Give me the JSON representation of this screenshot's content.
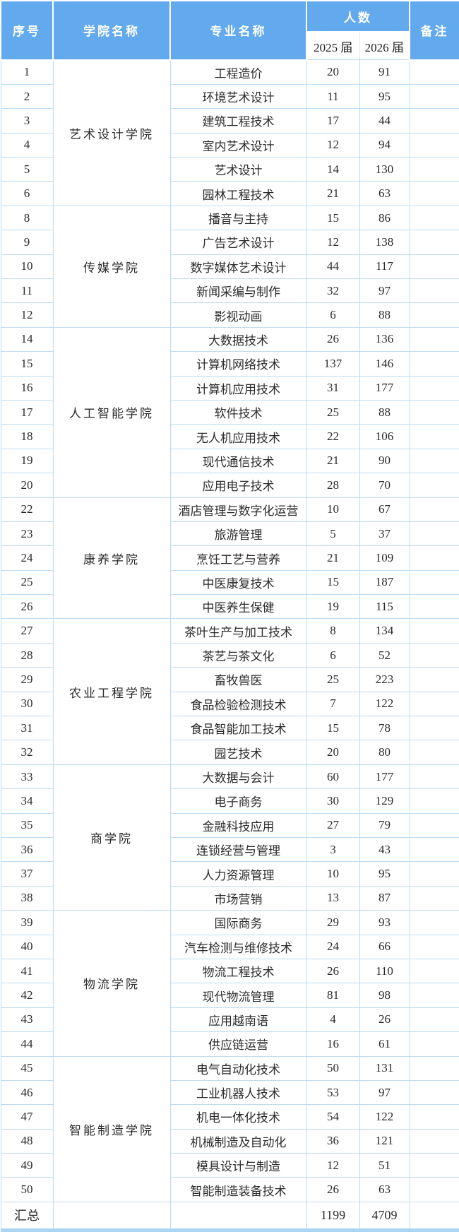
{
  "colors": {
    "header_bg": "#63a9ed",
    "header_text": "#ffffff",
    "grid_border": "#bcdcf4",
    "body_text": "#2b2b2b",
    "bottom_edge": "#a9d4f3"
  },
  "table": {
    "headers": {
      "serial": "序号",
      "college": "学院名称",
      "major": "专业名称",
      "count": "人数",
      "cohort_2025": "2025 届",
      "cohort_2026": "2026 届",
      "remark": "备注"
    },
    "groups": [
      {
        "college": "艺术设计学院",
        "rows": [
          {
            "no": "1",
            "major": "工程造价",
            "c2025": "20",
            "c2026": "91",
            "remark": ""
          },
          {
            "no": "2",
            "major": "环境艺术设计",
            "c2025": "11",
            "c2026": "95",
            "remark": ""
          },
          {
            "no": "3",
            "major": "建筑工程技术",
            "c2025": "17",
            "c2026": "44",
            "remark": ""
          },
          {
            "no": "4",
            "major": "室内艺术设计",
            "c2025": "12",
            "c2026": "94",
            "remark": ""
          },
          {
            "no": "5",
            "major": "艺术设计",
            "c2025": "14",
            "c2026": "130",
            "remark": ""
          },
          {
            "no": "6",
            "major": "园林工程技术",
            "c2025": "21",
            "c2026": "63",
            "remark": ""
          }
        ]
      },
      {
        "college": "传媒学院",
        "rows": [
          {
            "no": "8",
            "major": "播音与主持",
            "c2025": "15",
            "c2026": "86",
            "remark": ""
          },
          {
            "no": "9",
            "major": "广告艺术设计",
            "c2025": "12",
            "c2026": "138",
            "remark": ""
          },
          {
            "no": "10",
            "major": "数字媒体艺术设计",
            "c2025": "44",
            "c2026": "117",
            "remark": ""
          },
          {
            "no": "11",
            "major": "新闻采编与制作",
            "c2025": "32",
            "c2026": "97",
            "remark": ""
          },
          {
            "no": "12",
            "major": "影视动画",
            "c2025": "6",
            "c2026": "88",
            "remark": ""
          }
        ]
      },
      {
        "college": "人工智能学院",
        "rows": [
          {
            "no": "14",
            "major": "大数据技术",
            "c2025": "26",
            "c2026": "136",
            "remark": ""
          },
          {
            "no": "15",
            "major": "计算机网络技术",
            "c2025": "137",
            "c2026": "146",
            "remark": ""
          },
          {
            "no": "16",
            "major": "计算机应用技术",
            "c2025": "31",
            "c2026": "177",
            "remark": ""
          },
          {
            "no": "17",
            "major": "软件技术",
            "c2025": "25",
            "c2026": "88",
            "remark": ""
          },
          {
            "no": "18",
            "major": "无人机应用技术",
            "c2025": "22",
            "c2026": "106",
            "remark": ""
          },
          {
            "no": "19",
            "major": "现代通信技术",
            "c2025": "21",
            "c2026": "90",
            "remark": ""
          },
          {
            "no": "20",
            "major": "应用电子技术",
            "c2025": "28",
            "c2026": "70",
            "remark": ""
          }
        ]
      },
      {
        "college": "康养学院",
        "rows": [
          {
            "no": "22",
            "major": "酒店管理与数字化运营",
            "c2025": "10",
            "c2026": "67",
            "remark": ""
          },
          {
            "no": "23",
            "major": "旅游管理",
            "c2025": "5",
            "c2026": "37",
            "remark": ""
          },
          {
            "no": "24",
            "major": "烹饪工艺与营养",
            "c2025": "21",
            "c2026": "109",
            "remark": ""
          },
          {
            "no": "25",
            "major": "中医康复技术",
            "c2025": "15",
            "c2026": "187",
            "remark": ""
          },
          {
            "no": "26",
            "major": "中医养生保健",
            "c2025": "19",
            "c2026": "115",
            "remark": ""
          }
        ]
      },
      {
        "college": "农业工程学院",
        "rows": [
          {
            "no": "27",
            "major": "茶叶生产与加工技术",
            "c2025": "8",
            "c2026": "134",
            "remark": ""
          },
          {
            "no": "28",
            "major": "茶艺与茶文化",
            "c2025": "6",
            "c2026": "52",
            "remark": ""
          },
          {
            "no": "29",
            "major": "畜牧兽医",
            "c2025": "25",
            "c2026": "223",
            "remark": ""
          },
          {
            "no": "30",
            "major": "食品检验检测技术",
            "c2025": "7",
            "c2026": "122",
            "remark": ""
          },
          {
            "no": "31",
            "major": "食品智能加工技术",
            "c2025": "15",
            "c2026": "78",
            "remark": ""
          },
          {
            "no": "32",
            "major": "园艺技术",
            "c2025": "20",
            "c2026": "80",
            "remark": ""
          }
        ]
      },
      {
        "college": "商学院",
        "rows": [
          {
            "no": "33",
            "major": "大数据与会计",
            "c2025": "60",
            "c2026": "177",
            "remark": ""
          },
          {
            "no": "34",
            "major": "电子商务",
            "c2025": "30",
            "c2026": "129",
            "remark": ""
          },
          {
            "no": "35",
            "major": "金融科技应用",
            "c2025": "27",
            "c2026": "79",
            "remark": ""
          },
          {
            "no": "36",
            "major": "连锁经营与管理",
            "c2025": "3",
            "c2026": "43",
            "remark": ""
          },
          {
            "no": "37",
            "major": "人力资源管理",
            "c2025": "10",
            "c2026": "95",
            "remark": ""
          },
          {
            "no": "38",
            "major": "市场营销",
            "c2025": "13",
            "c2026": "87",
            "remark": ""
          }
        ]
      },
      {
        "college": "物流学院",
        "rows": [
          {
            "no": "39",
            "major": "国际商务",
            "c2025": "29",
            "c2026": "93",
            "remark": ""
          },
          {
            "no": "40",
            "major": "汽车检测与维修技术",
            "c2025": "24",
            "c2026": "66",
            "remark": ""
          },
          {
            "no": "41",
            "major": "物流工程技术",
            "c2025": "26",
            "c2026": "110",
            "remark": ""
          },
          {
            "no": "42",
            "major": "现代物流管理",
            "c2025": "81",
            "c2026": "98",
            "remark": ""
          },
          {
            "no": "43",
            "major": "应用越南语",
            "c2025": "4",
            "c2026": "26",
            "remark": ""
          },
          {
            "no": "44",
            "major": "供应链运营",
            "c2025": "16",
            "c2026": "61",
            "remark": ""
          }
        ]
      },
      {
        "college": "智能制造学院",
        "rows": [
          {
            "no": "45",
            "major": "电气自动化技术",
            "c2025": "50",
            "c2026": "131",
            "remark": ""
          },
          {
            "no": "46",
            "major": "工业机器人技术",
            "c2025": "53",
            "c2026": "97",
            "remark": ""
          },
          {
            "no": "47",
            "major": "机电一体化技术",
            "c2025": "54",
            "c2026": "122",
            "remark": ""
          },
          {
            "no": "48",
            "major": "机械制造及自动化",
            "c2025": "36",
            "c2026": "121",
            "remark": ""
          },
          {
            "no": "49",
            "major": "模具设计与制造",
            "c2025": "12",
            "c2026": "51",
            "remark": ""
          },
          {
            "no": "50",
            "major": "智能制造装备技术",
            "c2025": "26",
            "c2026": "63",
            "remark": ""
          }
        ]
      }
    ],
    "total": {
      "label": "汇总",
      "c2025": "1199",
      "c2026": "4709",
      "remark": ""
    }
  }
}
